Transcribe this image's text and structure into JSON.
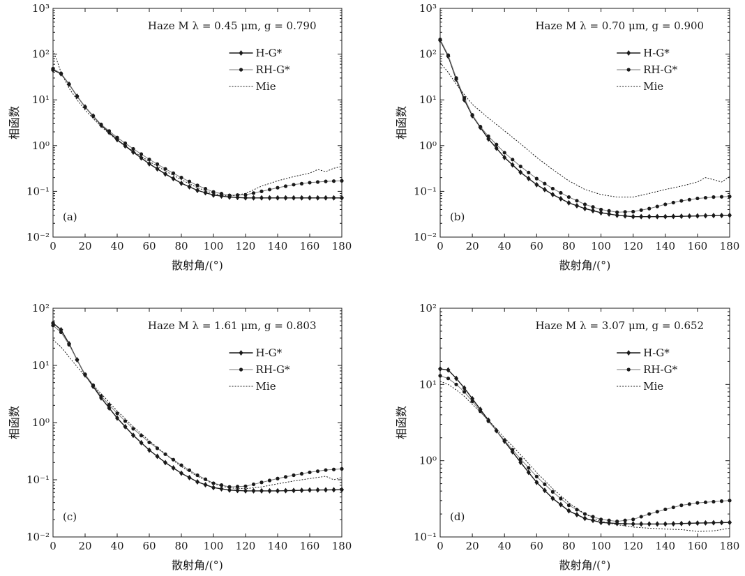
{
  "chart_data": [
    {
      "type": "line",
      "panel_label": "(a)",
      "title": "Haze M λ = 0.45 μm, g = 0.790",
      "xlabel": "散射角/(°)",
      "ylabel": "相函数",
      "yscale": "log",
      "xlim": [
        0,
        180
      ],
      "ylim": [
        0.01,
        1000
      ],
      "xticks": [
        "0",
        "20",
        "40",
        "60",
        "80",
        "100",
        "120",
        "140",
        "160",
        "180"
      ],
      "yticks": [
        "10⁻²",
        "10⁻¹",
        "10⁰",
        "10¹",
        "10²",
        "10³"
      ],
      "legend_position": "top-right",
      "series": [
        {
          "name": "H-G*",
          "style": "solid-diamond",
          "x": [
            0,
            5,
            10,
            15,
            20,
            30,
            40,
            50,
            60,
            70,
            80,
            90,
            100,
            110,
            120,
            140,
            160,
            180
          ],
          "values": [
            45,
            37,
            22,
            12,
            7,
            2.8,
            1.35,
            0.72,
            0.4,
            0.24,
            0.15,
            0.105,
            0.083,
            0.075,
            0.072,
            0.072,
            0.072,
            0.072
          ]
        },
        {
          "name": "RH-G*",
          "style": "solid-dot",
          "x": [
            0,
            5,
            10,
            15,
            20,
            30,
            40,
            50,
            60,
            70,
            80,
            90,
            100,
            110,
            120,
            130,
            140,
            150,
            160,
            170,
            180
          ],
          "values": [
            48,
            38,
            22,
            12,
            7,
            2.9,
            1.5,
            0.85,
            0.5,
            0.31,
            0.2,
            0.135,
            0.097,
            0.082,
            0.084,
            0.1,
            0.12,
            0.14,
            0.155,
            0.165,
            0.17
          ]
        },
        {
          "name": "Mie",
          "style": "dotted",
          "x": [
            0,
            2,
            5,
            10,
            15,
            20,
            30,
            40,
            50,
            60,
            70,
            80,
            90,
            100,
            110,
            120,
            130,
            140,
            150,
            160,
            165,
            170,
            175,
            180
          ],
          "values": [
            120,
            80,
            40,
            18,
            10,
            6,
            2.6,
            1.3,
            0.75,
            0.45,
            0.28,
            0.18,
            0.12,
            0.09,
            0.078,
            0.09,
            0.13,
            0.17,
            0.21,
            0.25,
            0.3,
            0.27,
            0.32,
            0.35
          ]
        }
      ]
    },
    {
      "type": "line",
      "panel_label": "(b)",
      "title": "Haze M λ = 0.70 μm, g = 0.900",
      "xlabel": "散射角/(°)",
      "ylabel": "相函数",
      "yscale": "log",
      "xlim": [
        0,
        180
      ],
      "ylim": [
        0.01,
        1000
      ],
      "xticks": [
        "0",
        "20",
        "40",
        "60",
        "80",
        "100",
        "120",
        "140",
        "160",
        "180"
      ],
      "yticks": [
        "10⁻²",
        "10⁻¹",
        "10⁰",
        "10¹",
        "10²",
        "10³"
      ],
      "legend_position": "top-right",
      "series": [
        {
          "name": "H-G*",
          "style": "solid-diamond",
          "x": [
            0,
            5,
            10,
            15,
            20,
            25,
            30,
            40,
            50,
            60,
            70,
            80,
            90,
            100,
            110,
            120,
            140,
            160,
            180
          ],
          "values": [
            200,
            90,
            28,
            10,
            4.5,
            2.5,
            1.4,
            0.55,
            0.26,
            0.14,
            0.085,
            0.056,
            0.042,
            0.034,
            0.03,
            0.028,
            0.028,
            0.029,
            0.03
          ]
        },
        {
          "name": "RH-G*",
          "style": "solid-dot",
          "x": [
            0,
            5,
            10,
            15,
            20,
            25,
            30,
            40,
            50,
            60,
            70,
            80,
            90,
            100,
            110,
            120,
            130,
            140,
            150,
            160,
            170,
            180
          ],
          "values": [
            210,
            95,
            30,
            11,
            4.7,
            2.6,
            1.6,
            0.7,
            0.35,
            0.19,
            0.115,
            0.075,
            0.052,
            0.04,
            0.035,
            0.036,
            0.042,
            0.052,
            0.062,
            0.07,
            0.075,
            0.077
          ]
        },
        {
          "name": "Mie",
          "style": "dotted",
          "x": [
            0,
            5,
            10,
            15,
            20,
            30,
            40,
            50,
            60,
            70,
            80,
            90,
            100,
            110,
            120,
            130,
            140,
            150,
            160,
            165,
            170,
            175,
            180
          ],
          "values": [
            65,
            40,
            22,
            13,
            8,
            4,
            2.1,
            1.1,
            0.55,
            0.3,
            0.17,
            0.11,
            0.085,
            0.075,
            0.075,
            0.09,
            0.11,
            0.13,
            0.16,
            0.2,
            0.18,
            0.16,
            0.21
          ]
        }
      ]
    },
    {
      "type": "line",
      "panel_label": "(c)",
      "title": "Haze M λ = 1.61 μm, g = 0.803",
      "xlabel": "散射角/(°)",
      "ylabel": "相函数",
      "yscale": "log",
      "xlim": [
        0,
        180
      ],
      "ylim": [
        0.01,
        100
      ],
      "xticks": [
        "0",
        "20",
        "40",
        "60",
        "80",
        "100",
        "120",
        "140",
        "160",
        "180"
      ],
      "yticks": [
        "10⁻²",
        "10⁻¹",
        "10⁰",
        "10¹",
        "10²"
      ],
      "legend_position": "top-right",
      "series": [
        {
          "name": "H-G*",
          "style": "solid-diamond",
          "x": [
            0,
            5,
            10,
            15,
            20,
            30,
            40,
            50,
            60,
            70,
            80,
            90,
            100,
            110,
            120,
            140,
            160,
            180
          ],
          "values": [
            55,
            42,
            24,
            12.5,
            6.8,
            2.7,
            1.2,
            0.6,
            0.33,
            0.2,
            0.13,
            0.092,
            0.073,
            0.066,
            0.064,
            0.064,
            0.066,
            0.067
          ]
        },
        {
          "name": "RH-G*",
          "style": "solid-dot",
          "x": [
            0,
            5,
            10,
            15,
            20,
            30,
            40,
            50,
            60,
            70,
            80,
            90,
            100,
            110,
            120,
            130,
            140,
            150,
            160,
            170,
            180
          ],
          "values": [
            50,
            38,
            23,
            12.5,
            7,
            2.9,
            1.45,
            0.78,
            0.45,
            0.28,
            0.18,
            0.12,
            0.087,
            0.075,
            0.077,
            0.09,
            0.105,
            0.12,
            0.135,
            0.148,
            0.155
          ]
        },
        {
          "name": "Mie",
          "style": "dotted",
          "x": [
            0,
            5,
            10,
            15,
            20,
            30,
            40,
            50,
            60,
            70,
            80,
            90,
            100,
            110,
            120,
            130,
            140,
            150,
            160,
            170,
            175,
            180
          ],
          "values": [
            28,
            21,
            14,
            9.5,
            6.5,
            3.2,
            1.6,
            0.85,
            0.48,
            0.28,
            0.17,
            0.115,
            0.085,
            0.072,
            0.07,
            0.075,
            0.085,
            0.095,
            0.105,
            0.115,
            0.1,
            0.11
          ]
        }
      ]
    },
    {
      "type": "line",
      "panel_label": "(d)",
      "title": "Haze M λ = 3.07 μm, g = 0.652",
      "xlabel": "散射角/(°)",
      "ylabel": "相函数",
      "yscale": "log",
      "xlim": [
        0,
        180
      ],
      "ylim": [
        0.1,
        100
      ],
      "xticks": [
        "0",
        "20",
        "40",
        "60",
        "80",
        "100",
        "120",
        "140",
        "160",
        "180"
      ],
      "yticks": [
        "10⁻¹",
        "10⁰",
        "10¹",
        "10²"
      ],
      "legend_position": "top-right",
      "series": [
        {
          "name": "H-G*",
          "style": "solid-diamond",
          "x": [
            0,
            5,
            10,
            15,
            20,
            30,
            40,
            50,
            60,
            70,
            80,
            90,
            100,
            110,
            120,
            140,
            160,
            180
          ],
          "values": [
            16,
            15.5,
            12,
            9,
            6.5,
            3.4,
            1.8,
            0.95,
            0.52,
            0.32,
            0.22,
            0.175,
            0.155,
            0.15,
            0.148,
            0.148,
            0.152,
            0.155
          ]
        },
        {
          "name": "RH-G*",
          "style": "solid-dot",
          "x": [
            0,
            5,
            10,
            15,
            20,
            30,
            40,
            50,
            60,
            70,
            80,
            90,
            100,
            110,
            120,
            130,
            140,
            150,
            160,
            170,
            180
          ],
          "values": [
            13,
            12,
            10,
            8,
            6,
            3.3,
            1.85,
            1.05,
            0.62,
            0.39,
            0.26,
            0.2,
            0.17,
            0.16,
            0.17,
            0.2,
            0.23,
            0.26,
            0.28,
            0.29,
            0.3
          ]
        },
        {
          "name": "Mie",
          "style": "dotted",
          "x": [
            0,
            5,
            10,
            15,
            20,
            30,
            40,
            50,
            60,
            70,
            80,
            90,
            100,
            110,
            120,
            130,
            140,
            150,
            160,
            170,
            180
          ],
          "values": [
            11,
            10,
            8.5,
            7,
            5.5,
            3.4,
            2,
            1.2,
            0.7,
            0.43,
            0.28,
            0.2,
            0.16,
            0.145,
            0.135,
            0.13,
            0.127,
            0.125,
            0.118,
            0.12,
            0.13
          ]
        }
      ]
    }
  ]
}
